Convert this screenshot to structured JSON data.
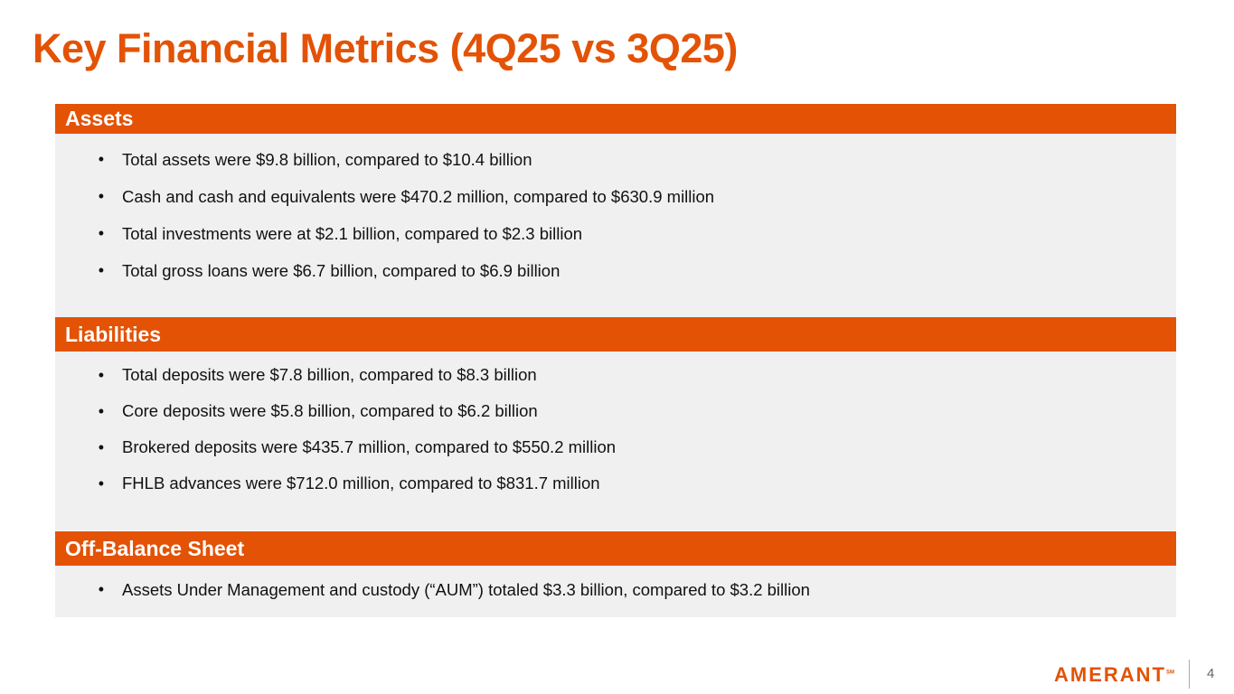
{
  "title": "Key Financial Metrics (4Q25 vs 3Q25)",
  "sections": [
    {
      "heading": "Assets",
      "items": [
        "Total assets were $9.8 billion, compared to $10.4 billion",
        "Cash and cash and equivalents were $470.2 million, compared to $630.9 million",
        "Total investments were at $2.1 billion, compared to $2.3 billion",
        "Total gross loans were $6.7 billion, compared to $6.9 billion"
      ]
    },
    {
      "heading": "Liabilities",
      "items": [
        "Total deposits were $7.8 billion, compared to $8.3 billion",
        "Core deposits were $5.8 billion, compared to $6.2 billion",
        "Brokered deposits were $435.7 million, compared to $550.2 million",
        "FHLB advances were $712.0 million, compared to $831.7 million"
      ]
    },
    {
      "heading": "Off-Balance Sheet",
      "items": [
        "Assets Under Management and custody (“AUM”) totaled $3.3 billion, compared to $3.2 billion"
      ]
    }
  ],
  "footer": {
    "logo": "AMERANT",
    "logo_mark": "SM",
    "page_number": "4"
  },
  "colors": {
    "accent": "#e35205",
    "panel": "#f0f0f0"
  }
}
